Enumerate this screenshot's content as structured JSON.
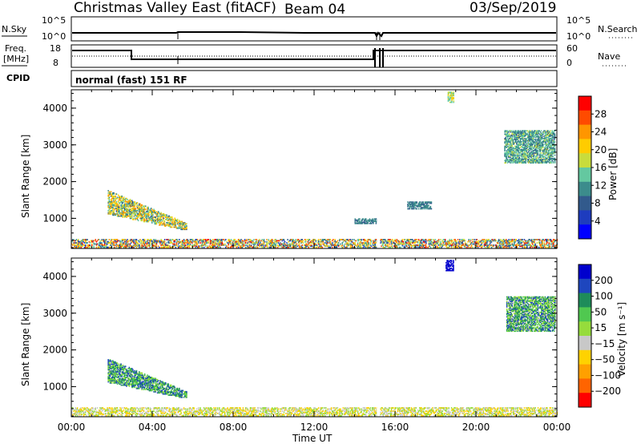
{
  "header": {
    "station": "Christmas Valley East (fitACF)",
    "beam": "Beam 04",
    "date": "03/Sep/2019"
  },
  "panels": {
    "nsky": {
      "label": "N.Sky",
      "right_label": "N.Search",
      "ticks_left": [
        "10^5",
        "10^0"
      ],
      "ticks_right": [
        "10^5",
        "10^0"
      ]
    },
    "freq": {
      "label_line1": "Freq.",
      "label_line2": "[MHz]",
      "right_label": "Nave",
      "ticks_left": [
        "18",
        "8"
      ],
      "ticks_right": [
        "60",
        "0"
      ]
    },
    "cpid": {
      "label": "CPID",
      "mode_text": "normal (fast) 151 RF"
    }
  },
  "x_axis": {
    "title": "Time UT",
    "ticks": [
      "00:00",
      "04:00",
      "08:00",
      "12:00",
      "16:00",
      "20:00",
      "00:00"
    ]
  },
  "power_colorbar": {
    "title": "Power [dB]",
    "ticks": [
      "28",
      "24",
      "20",
      "16",
      "12",
      "8",
      "4"
    ],
    "colors": [
      "#ff0000",
      "#ff4b00",
      "#ff9600",
      "#ffcc00",
      "#c8dc3c",
      "#64c8a0",
      "#3c8c8c",
      "#325a8c",
      "#1e3cbe",
      "#0000ff"
    ]
  },
  "velocity_colorbar": {
    "title": "Velocity [m s⁻¹]",
    "ticks": [
      "200",
      "100",
      "50",
      "15",
      "−15",
      "−50",
      "−100",
      "−200"
    ],
    "colors": [
      "#0000cd",
      "#1e46be",
      "#1e8c5a",
      "#50c850",
      "#96dc3c",
      "#c8c8c8",
      "#ffd200",
      "#ffa000",
      "#ff6400",
      "#ff0000"
    ]
  },
  "chart_data": [
    {
      "type": "heatmap",
      "name": "power",
      "ylabel": "Slant Range [km]",
      "xlabel": "Time UT",
      "xlim_hours": [
        0,
        24
      ],
      "ylim_km": [
        180,
        4500
      ],
      "y_ticks": [
        1000,
        2000,
        3000,
        4000
      ],
      "colorbar": "Power [dB]",
      "regions": [
        {
          "label": "early echoes",
          "t": [
            1.8,
            5.7
          ],
          "range_km": [
            600,
            1750
          ],
          "power_db": [
            8,
            24
          ]
        },
        {
          "label": "near range band",
          "t": [
            0.0,
            24.0
          ],
          "range_km": [
            200,
            420
          ],
          "power_db": [
            4,
            28
          ]
        },
        {
          "label": "mid-day patch",
          "t": [
            14.0,
            15.2
          ],
          "range_km": [
            850,
            1000
          ],
          "power_db": [
            8,
            12
          ]
        },
        {
          "label": "afternoon patch",
          "t": [
            16.6,
            17.8
          ],
          "range_km": [
            1250,
            1450
          ],
          "power_db": [
            8,
            12
          ]
        },
        {
          "label": "evening far echo",
          "t": [
            18.6,
            18.9
          ],
          "range_km": [
            4150,
            4450
          ],
          "power_db": [
            12,
            20
          ]
        },
        {
          "label": "late far echoes",
          "t": [
            21.4,
            23.9
          ],
          "range_km": [
            2500,
            3400
          ],
          "power_db": [
            8,
            16
          ]
        }
      ]
    },
    {
      "type": "heatmap",
      "name": "velocity",
      "ylabel": "Slant Range [km]",
      "xlabel": "Time UT",
      "xlim_hours": [
        0,
        24
      ],
      "ylim_km": [
        180,
        4500
      ],
      "y_ticks": [
        1000,
        2000,
        3000,
        4000
      ],
      "colorbar": "Velocity [m s⁻¹]",
      "regions": [
        {
          "label": "early echoes",
          "t": [
            1.8,
            5.7
          ],
          "range_km": [
            700,
            1750
          ],
          "velocity": [
            15,
            200
          ]
        },
        {
          "label": "ground scatter band",
          "t": [
            0.0,
            24.0
          ],
          "range_km": [
            200,
            420
          ],
          "velocity": [
            -100,
            50
          ]
        },
        {
          "label": "evening far echo",
          "t": [
            18.5,
            18.9
          ],
          "range_km": [
            4150,
            4450
          ],
          "velocity": [
            200,
            200
          ]
        },
        {
          "label": "late far echoes",
          "t": [
            21.5,
            23.9
          ],
          "range_km": [
            2500,
            3450
          ],
          "velocity": [
            -15,
            200
          ]
        }
      ]
    }
  ]
}
